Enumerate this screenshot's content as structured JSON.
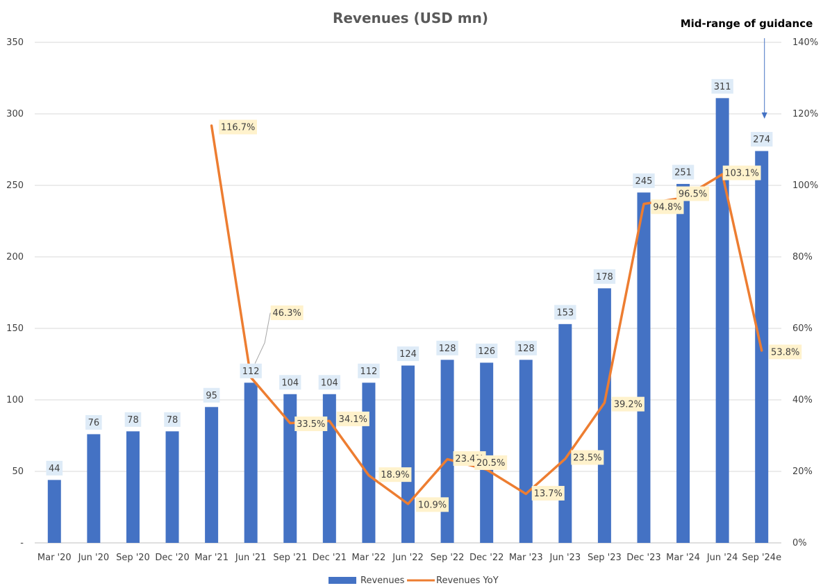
{
  "chart_data": {
    "type": "bar",
    "title": "Revenues (USD mn)",
    "annotation": "Mid-range of guidance",
    "categories": [
      "Mar '20",
      "Jun '20",
      "Sep '20",
      "Dec '20",
      "Mar '21",
      "Jun '21",
      "Sep '21",
      "Dec '21",
      "Mar '22",
      "Jun '22",
      "Sep '22",
      "Dec '22",
      "Mar '23",
      "Jun '23",
      "Sep '23",
      "Dec '23",
      "Mar '24",
      "Jun '24",
      "Sep '24e"
    ],
    "series": [
      {
        "name": "Revenues",
        "type": "bar",
        "axis": "left",
        "color": "#4472C4",
        "values": [
          44,
          76,
          78,
          78,
          95,
          112,
          104,
          104,
          112,
          124,
          128,
          126,
          128,
          153,
          178,
          245,
          251,
          311,
          274
        ],
        "labels": [
          "44",
          "76",
          "78",
          "78",
          "95",
          "112",
          "104",
          "104",
          "112",
          "124",
          "128",
          "126",
          "128",
          "153",
          "178",
          "245",
          "251",
          "311",
          "274"
        ]
      },
      {
        "name": "Revenues YoY",
        "type": "line",
        "axis": "right",
        "color": "#ED7D31",
        "values": [
          null,
          null,
          null,
          null,
          116.7,
          46.3,
          33.5,
          34.1,
          18.9,
          10.9,
          23.4,
          20.5,
          13.7,
          23.5,
          39.2,
          94.8,
          96.5,
          103.1,
          53.8
        ],
        "labels": [
          "",
          "",
          "",
          "",
          "116.7%",
          "46.3%",
          "33.5%",
          "34.1%",
          "18.9%",
          "10.9%",
          "23.4%",
          "20.5%",
          "13.7%",
          "23.5%",
          "39.2%",
          "94.8%",
          "96.5%",
          "103.1%",
          "53.8%"
        ]
      }
    ],
    "y_left": {
      "ylim": [
        0,
        350
      ],
      "ticks": [
        "-",
        "50",
        "100",
        "150",
        "200",
        "250",
        "300",
        "350"
      ]
    },
    "y_right": {
      "ylim": [
        0,
        140
      ],
      "ticks": [
        "0%",
        "20%",
        "40%",
        "60%",
        "80%",
        "100%",
        "120%",
        "140%"
      ]
    },
    "grid": true,
    "legend_position": "bottom",
    "label_colors": {
      "bar_label_bg": "#DEEBF7",
      "line_label_bg": "#FFF2CC",
      "text": "#404040",
      "grid": "#D9D9D9"
    }
  }
}
